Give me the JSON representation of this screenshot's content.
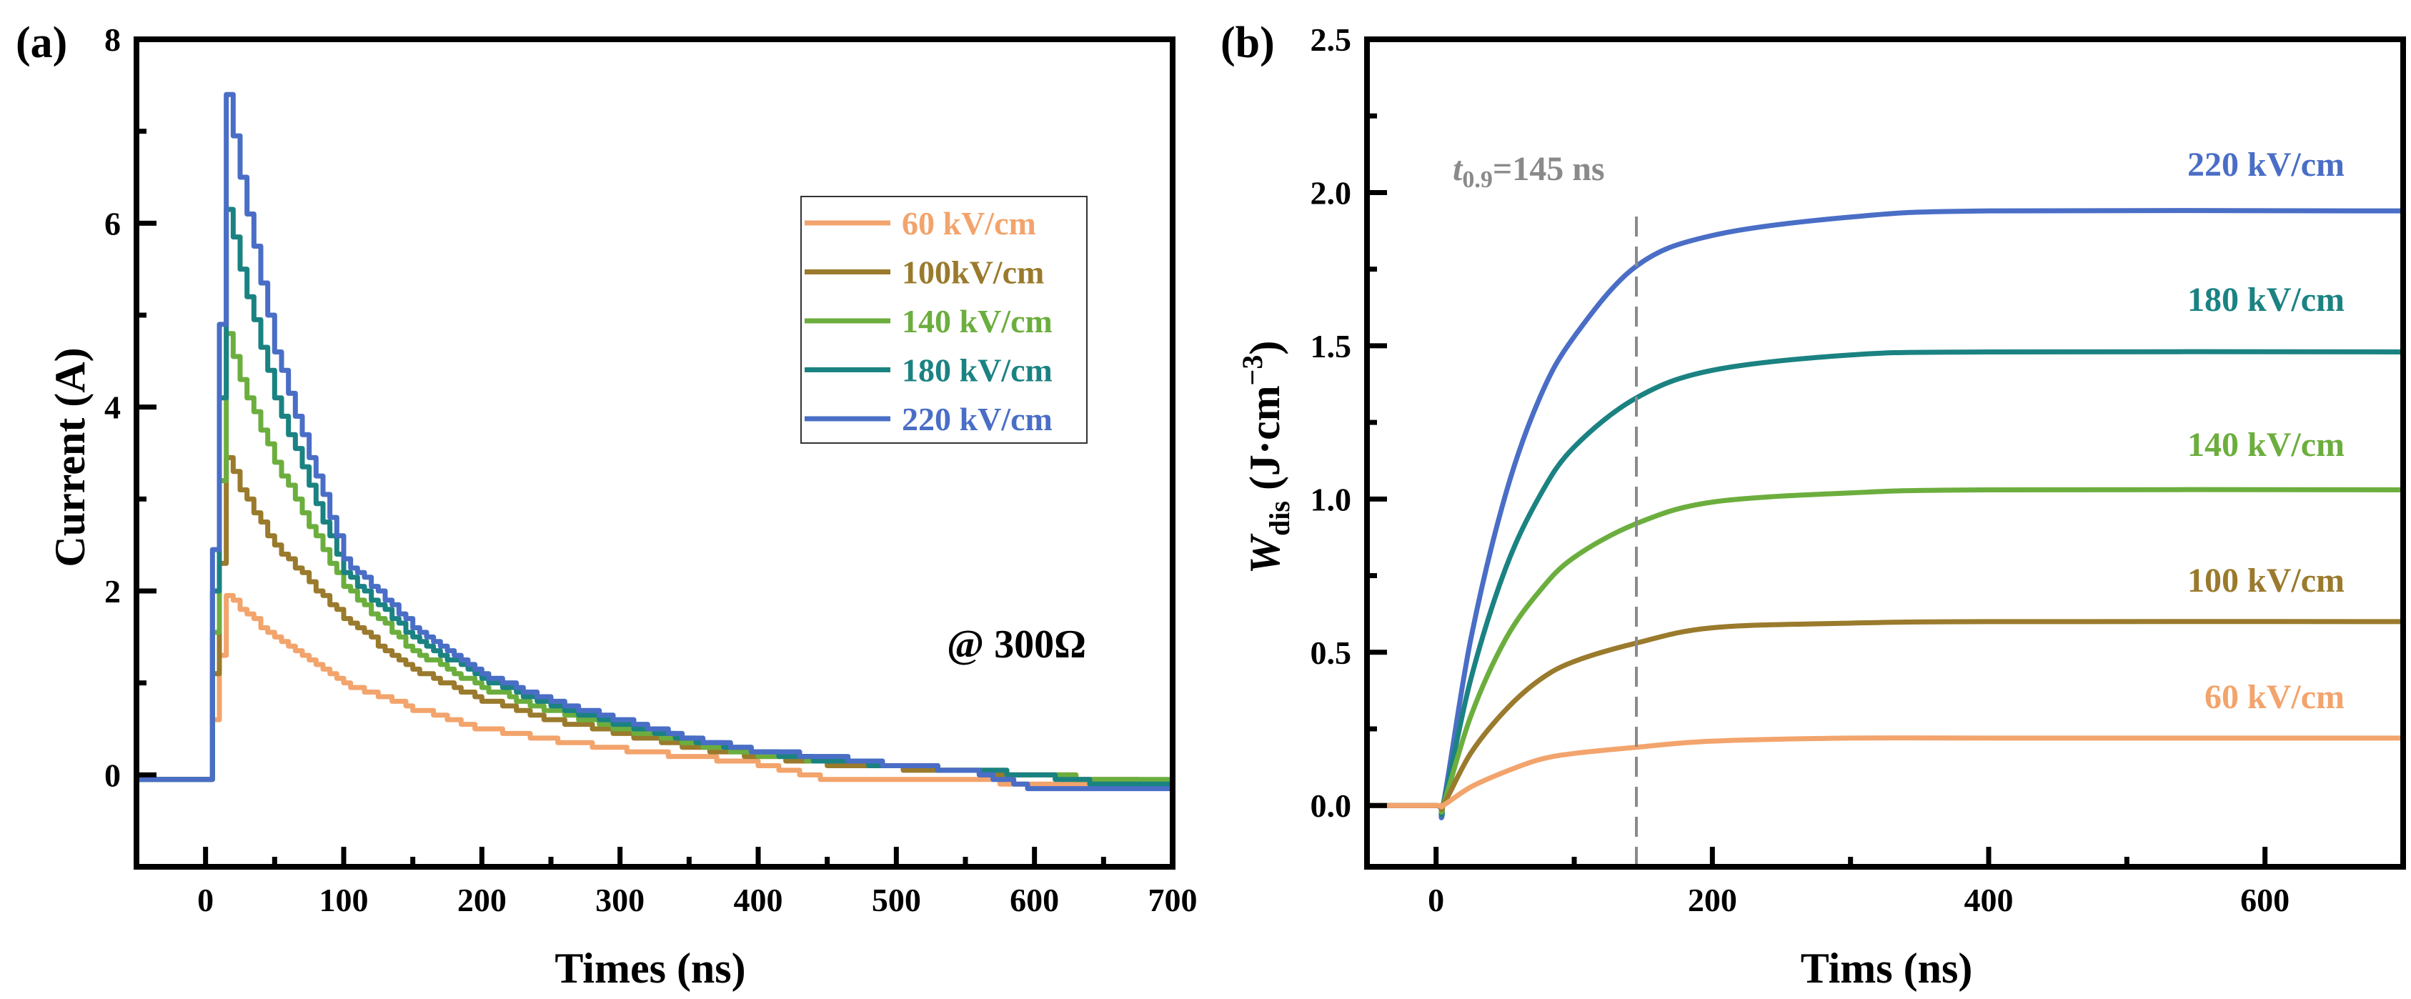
{
  "chart_data": [
    {
      "panel_label": "(a)",
      "type": "line",
      "style": "step",
      "xlabel": "Times (ns)",
      "ylabel": "Current (A)",
      "xlim": [
        -50,
        700
      ],
      "ylim": [
        -1,
        8
      ],
      "xticks": [
        0,
        100,
        200,
        300,
        400,
        500,
        600,
        700
      ],
      "yticks": [
        0,
        2,
        4,
        6,
        8
      ],
      "x_minor_step": 50,
      "y_minor_step": 1,
      "annotation": "@ 300Ω",
      "legend_placement": "top-right",
      "x": [
        -50,
        0,
        15,
        25,
        50,
        100,
        150,
        200,
        250,
        300,
        350,
        400,
        450,
        500,
        550,
        600,
        650,
        700
      ],
      "series": [
        {
          "name": "60 kV/cm",
          "color": "#F2A46C",
          "values": [
            -0.05,
            -0.05,
            1.95,
            1.8,
            1.5,
            1.0,
            0.72,
            0.5,
            0.38,
            0.28,
            0.2,
            0.12,
            -0.05,
            -0.05,
            -0.05,
            -0.1,
            -0.1,
            -0.1
          ]
        },
        {
          "name": "100kV/cm",
          "color": "#9A7A2C",
          "values": [
            -0.05,
            -0.05,
            3.45,
            3.1,
            2.5,
            1.7,
            1.15,
            0.82,
            0.6,
            0.45,
            0.3,
            0.2,
            0.12,
            0.08,
            0.03,
            0,
            -0.05,
            -0.1
          ]
        },
        {
          "name": "140 kV/cm",
          "color": "#6CAE3E",
          "values": [
            -0.05,
            -0.05,
            4.8,
            4.3,
            3.4,
            2.05,
            1.35,
            0.95,
            0.7,
            0.5,
            0.35,
            0.22,
            0.15,
            0.1,
            0.05,
            0,
            -0.05,
            -0.05
          ]
        },
        {
          "name": "180 kV/cm",
          "color": "#1B8282",
          "values": [
            -0.05,
            -0.05,
            6.15,
            5.5,
            4.1,
            2.2,
            1.5,
            1.05,
            0.75,
            0.55,
            0.38,
            0.25,
            0.15,
            0.1,
            0.05,
            0,
            -0.1,
            -0.1
          ]
        },
        {
          "name": "220 kV/cm",
          "color": "#4A6EC6",
          "values": [
            -0.05,
            -0.05,
            7.4,
            6.5,
            4.6,
            2.35,
            1.6,
            1.1,
            0.8,
            0.6,
            0.4,
            0.25,
            0.2,
            0.1,
            0.05,
            -0.15,
            -0.15,
            -0.15
          ]
        }
      ]
    },
    {
      "panel_label": "(b)",
      "type": "line",
      "style": "smooth",
      "xlabel": "Tims (ns)",
      "ylabel_main": "W",
      "ylabel_sub": "dis",
      "ylabel_unit": " (J·cm",
      "ylabel_sup": "−3",
      "ylabel_close": ")",
      "xlim": [
        -50,
        700
      ],
      "ylim": [
        -0.2,
        2.5
      ],
      "xticks": [
        0,
        200,
        400,
        600
      ],
      "yticks": [
        "0.0",
        "0.5",
        "1.0",
        "1.5",
        "2.0",
        "2.5"
      ],
      "x_minor_step": 100,
      "y_minor_step": 0.25,
      "marker_line": {
        "x": 145,
        "label_main": "t",
        "label_sub": "0.9",
        "label_rest": "=145 ns",
        "color": "#8A8A8A"
      },
      "x": [
        -50,
        0,
        5,
        25,
        50,
        75,
        100,
        145,
        200,
        300,
        400,
        700
      ],
      "series": [
        {
          "name": "220 kV/cm",
          "color": "#4A6EC6",
          "values": [
            0,
            0,
            0,
            0.54,
            1.01,
            1.33,
            1.53,
            1.76,
            1.86,
            1.92,
            1.94,
            1.94
          ]
        },
        {
          "name": "180 kV/cm",
          "color": "#1B8282",
          "values": [
            0,
            0,
            0,
            0.41,
            0.77,
            1.01,
            1.17,
            1.33,
            1.42,
            1.47,
            1.48,
            1.48
          ]
        },
        {
          "name": "140 kV/cm",
          "color": "#6CAE3E",
          "values": [
            0,
            0,
            0,
            0.29,
            0.54,
            0.7,
            0.81,
            0.92,
            0.99,
            1.02,
            1.03,
            1.03
          ]
        },
        {
          "name": "100 kV/cm",
          "color": "#9A7A2C",
          "values": [
            0,
            0,
            0,
            0.17,
            0.31,
            0.41,
            0.47,
            0.53,
            0.58,
            0.595,
            0.6,
            0.6
          ]
        },
        {
          "name": "60 kV/cm",
          "color": "#F2A46C",
          "values": [
            0,
            0,
            0,
            0.06,
            0.11,
            0.15,
            0.17,
            0.19,
            0.21,
            0.22,
            0.22,
            0.22
          ]
        }
      ]
    }
  ]
}
